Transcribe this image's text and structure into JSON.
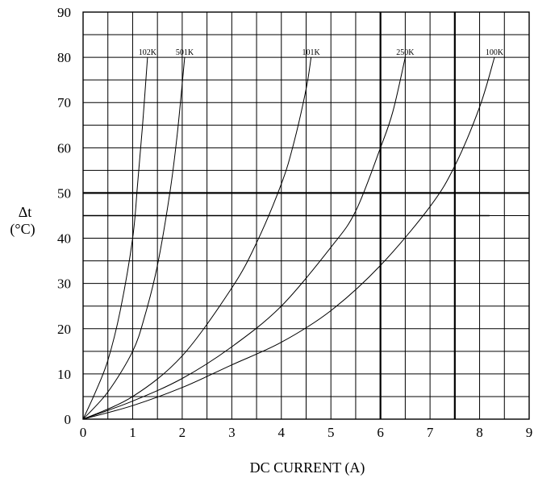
{
  "chart_data": {
    "type": "line",
    "xlabel": "DC CURRENT (A)",
    "ylabel_line1": "Δt",
    "ylabel_line2": "(°C)",
    "xlim": [
      0,
      9
    ],
    "ylim": [
      0,
      90
    ],
    "x_ticks": [
      "0",
      "1",
      "2",
      "3",
      "4",
      "5",
      "6",
      "7",
      "8",
      "9"
    ],
    "y_ticks": [
      "0",
      "10",
      "20",
      "30",
      "40",
      "50",
      "60",
      "70",
      "80",
      "90"
    ],
    "grid": true,
    "x_minor_step": 0.5,
    "y_minor_step": 5,
    "emphasized_gridlines": {
      "x": [
        6,
        7.5
      ],
      "y": [
        50
      ]
    },
    "emphasized_y_lines_extent": {
      "y": [
        45,
        50
      ],
      "x_end": 8.2
    },
    "series": [
      {
        "name": "102K",
        "x": [
          0,
          0.25,
          0.5,
          0.75,
          1.0,
          1.1,
          1.2,
          1.3
        ],
        "y": [
          0,
          6,
          13,
          24,
          40,
          52,
          65,
          80
        ]
      },
      {
        "name": "501K",
        "x": [
          0,
          0.5,
          1.0,
          1.25,
          1.5,
          1.75,
          1.9,
          2.05
        ],
        "y": [
          0,
          6,
          15,
          23,
          34,
          50,
          63,
          80
        ]
      },
      {
        "name": "101K",
        "x": [
          0,
          1.0,
          2.0,
          3.0,
          3.5,
          4.0,
          4.25,
          4.5,
          4.6
        ],
        "y": [
          0,
          5,
          14,
          29,
          39,
          52,
          61,
          73,
          80
        ]
      },
      {
        "name": "250K",
        "x": [
          0,
          1.0,
          2.0,
          3.0,
          4.0,
          5.0,
          5.5,
          6.0,
          6.25,
          6.5
        ],
        "y": [
          0,
          4,
          9,
          16,
          25,
          38,
          46,
          60,
          68,
          80
        ]
      },
      {
        "name": "100K",
        "x": [
          0,
          1.0,
          2.0,
          3.0,
          4.0,
          5.0,
          6.0,
          7.0,
          7.5,
          8.0,
          8.3
        ],
        "y": [
          0,
          3,
          7,
          12,
          17,
          24,
          34,
          47,
          56,
          69,
          80
        ]
      }
    ]
  }
}
